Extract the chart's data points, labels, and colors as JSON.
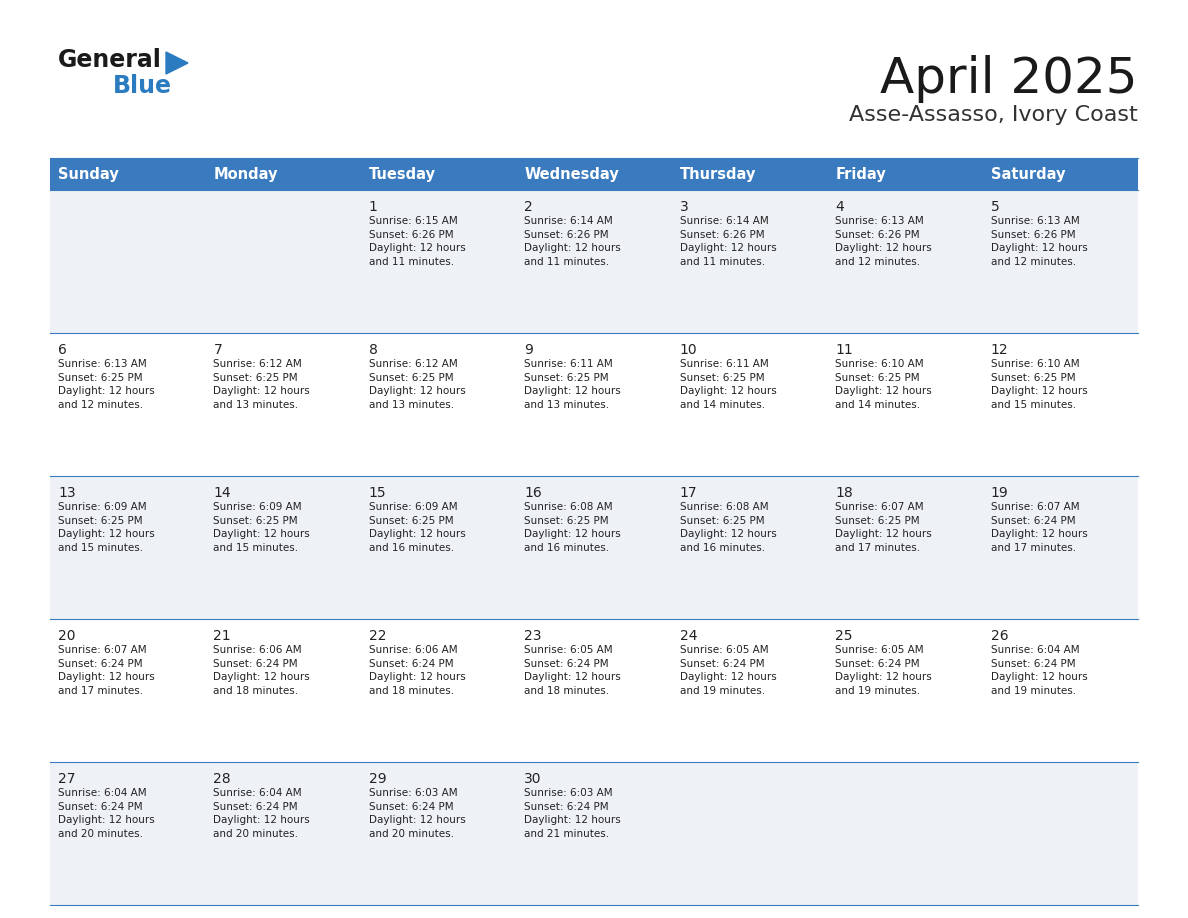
{
  "title": "April 2025",
  "subtitle": "Asse-Assasso, Ivory Coast",
  "header_bg_color": "#3a7bbf",
  "header_text_color": "#ffffff",
  "cell_bg_even": "#eef2f7",
  "cell_bg_odd": "#ffffff",
  "cell_border_color": "#3a7bbf",
  "day_headers": [
    "Sunday",
    "Monday",
    "Tuesday",
    "Wednesday",
    "Thursday",
    "Friday",
    "Saturday"
  ],
  "title_color": "#1a1a1a",
  "subtitle_color": "#333333",
  "text_color": "#222222",
  "logo_blue_color": "#2a7bbf",
  "calendar_data": [
    [
      {
        "day": "",
        "info": ""
      },
      {
        "day": "",
        "info": ""
      },
      {
        "day": "1",
        "info": "Sunrise: 6:15 AM\nSunset: 6:26 PM\nDaylight: 12 hours\nand 11 minutes."
      },
      {
        "day": "2",
        "info": "Sunrise: 6:14 AM\nSunset: 6:26 PM\nDaylight: 12 hours\nand 11 minutes."
      },
      {
        "day": "3",
        "info": "Sunrise: 6:14 AM\nSunset: 6:26 PM\nDaylight: 12 hours\nand 11 minutes."
      },
      {
        "day": "4",
        "info": "Sunrise: 6:13 AM\nSunset: 6:26 PM\nDaylight: 12 hours\nand 12 minutes."
      },
      {
        "day": "5",
        "info": "Sunrise: 6:13 AM\nSunset: 6:26 PM\nDaylight: 12 hours\nand 12 minutes."
      }
    ],
    [
      {
        "day": "6",
        "info": "Sunrise: 6:13 AM\nSunset: 6:25 PM\nDaylight: 12 hours\nand 12 minutes."
      },
      {
        "day": "7",
        "info": "Sunrise: 6:12 AM\nSunset: 6:25 PM\nDaylight: 12 hours\nand 13 minutes."
      },
      {
        "day": "8",
        "info": "Sunrise: 6:12 AM\nSunset: 6:25 PM\nDaylight: 12 hours\nand 13 minutes."
      },
      {
        "day": "9",
        "info": "Sunrise: 6:11 AM\nSunset: 6:25 PM\nDaylight: 12 hours\nand 13 minutes."
      },
      {
        "day": "10",
        "info": "Sunrise: 6:11 AM\nSunset: 6:25 PM\nDaylight: 12 hours\nand 14 minutes."
      },
      {
        "day": "11",
        "info": "Sunrise: 6:10 AM\nSunset: 6:25 PM\nDaylight: 12 hours\nand 14 minutes."
      },
      {
        "day": "12",
        "info": "Sunrise: 6:10 AM\nSunset: 6:25 PM\nDaylight: 12 hours\nand 15 minutes."
      }
    ],
    [
      {
        "day": "13",
        "info": "Sunrise: 6:09 AM\nSunset: 6:25 PM\nDaylight: 12 hours\nand 15 minutes."
      },
      {
        "day": "14",
        "info": "Sunrise: 6:09 AM\nSunset: 6:25 PM\nDaylight: 12 hours\nand 15 minutes."
      },
      {
        "day": "15",
        "info": "Sunrise: 6:09 AM\nSunset: 6:25 PM\nDaylight: 12 hours\nand 16 minutes."
      },
      {
        "day": "16",
        "info": "Sunrise: 6:08 AM\nSunset: 6:25 PM\nDaylight: 12 hours\nand 16 minutes."
      },
      {
        "day": "17",
        "info": "Sunrise: 6:08 AM\nSunset: 6:25 PM\nDaylight: 12 hours\nand 16 minutes."
      },
      {
        "day": "18",
        "info": "Sunrise: 6:07 AM\nSunset: 6:25 PM\nDaylight: 12 hours\nand 17 minutes."
      },
      {
        "day": "19",
        "info": "Sunrise: 6:07 AM\nSunset: 6:24 PM\nDaylight: 12 hours\nand 17 minutes."
      }
    ],
    [
      {
        "day": "20",
        "info": "Sunrise: 6:07 AM\nSunset: 6:24 PM\nDaylight: 12 hours\nand 17 minutes."
      },
      {
        "day": "21",
        "info": "Sunrise: 6:06 AM\nSunset: 6:24 PM\nDaylight: 12 hours\nand 18 minutes."
      },
      {
        "day": "22",
        "info": "Sunrise: 6:06 AM\nSunset: 6:24 PM\nDaylight: 12 hours\nand 18 minutes."
      },
      {
        "day": "23",
        "info": "Sunrise: 6:05 AM\nSunset: 6:24 PM\nDaylight: 12 hours\nand 18 minutes."
      },
      {
        "day": "24",
        "info": "Sunrise: 6:05 AM\nSunset: 6:24 PM\nDaylight: 12 hours\nand 19 minutes."
      },
      {
        "day": "25",
        "info": "Sunrise: 6:05 AM\nSunset: 6:24 PM\nDaylight: 12 hours\nand 19 minutes."
      },
      {
        "day": "26",
        "info": "Sunrise: 6:04 AM\nSunset: 6:24 PM\nDaylight: 12 hours\nand 19 minutes."
      }
    ],
    [
      {
        "day": "27",
        "info": "Sunrise: 6:04 AM\nSunset: 6:24 PM\nDaylight: 12 hours\nand 20 minutes."
      },
      {
        "day": "28",
        "info": "Sunrise: 6:04 AM\nSunset: 6:24 PM\nDaylight: 12 hours\nand 20 minutes."
      },
      {
        "day": "29",
        "info": "Sunrise: 6:03 AM\nSunset: 6:24 PM\nDaylight: 12 hours\nand 20 minutes."
      },
      {
        "day": "30",
        "info": "Sunrise: 6:03 AM\nSunset: 6:24 PM\nDaylight: 12 hours\nand 21 minutes."
      },
      {
        "day": "",
        "info": ""
      },
      {
        "day": "",
        "info": ""
      },
      {
        "day": "",
        "info": ""
      }
    ]
  ]
}
